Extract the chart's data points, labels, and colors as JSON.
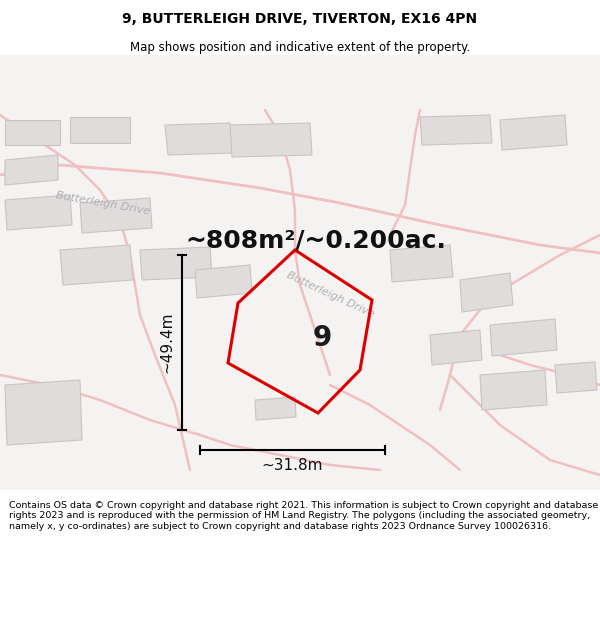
{
  "title": "9, BUTTERLEIGH DRIVE, TIVERTON, EX16 4PN",
  "subtitle": "Map shows position and indicative extent of the property.",
  "area_label": "~808m²/~0.200ac.",
  "plot_number": "9",
  "dim_width": "~31.8m",
  "dim_height": "~49.4m",
  "footer": "Contains OS data © Crown copyright and database right 2021. This information is subject to Crown copyright and database rights 2023 and is reproduced with the permission of HM Land Registry. The polygons (including the associated geometry, namely x, y co-ordinates) are subject to Crown copyright and database rights 2023 Ordnance Survey 100026316.",
  "map_bg": "#f0eeee",
  "road_color": "#f0c0c0",
  "building_fill": "#e0dcdc",
  "building_edge": "#c8c4c4",
  "plot_edge_color": "#dd0000",
  "street_label_color": "#b0b0b0",
  "street_label": "Butterleigh Drive",
  "title_fontsize": 10,
  "subtitle_fontsize": 8.5,
  "area_fontsize": 18,
  "plot_num_fontsize": 20,
  "dim_fontsize": 11,
  "street_fontsize": 8,
  "footer_fontsize": 6.8
}
